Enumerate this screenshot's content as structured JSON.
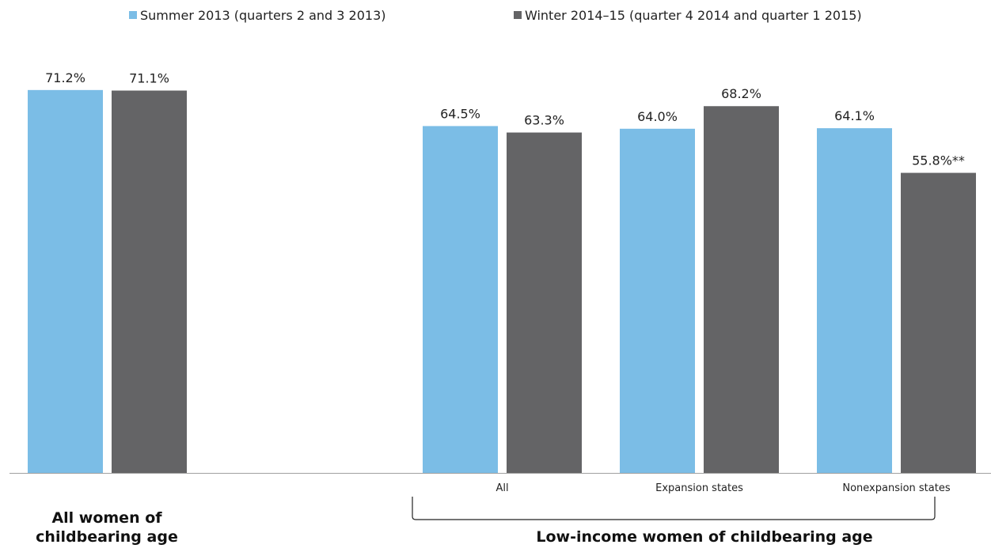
{
  "chart_data": {
    "type": "bar",
    "series": [
      {
        "name": "Summer 2013 (quarters 2 and 3 2013)",
        "color": "#7bbde6",
        "values": [
          71.2,
          64.5,
          64.0,
          64.1
        ],
        "labels": [
          "71.2%",
          "64.5%",
          "64.0%",
          "64.1%"
        ]
      },
      {
        "name": "Winter 2014–15 (quarter 4 2014 and quarter 1 2015)",
        "color": "#646466",
        "values": [
          71.1,
          63.3,
          68.2,
          55.8
        ],
        "labels": [
          "71.1%",
          "63.3%",
          "68.2%",
          "55.8%**"
        ]
      }
    ],
    "categories": [
      "",
      "All",
      "Expansion states",
      "Nonexpansion states"
    ],
    "groups": [
      "All women of childbearing age",
      "Low-income women of childbearing age"
    ],
    "legend_position": "top",
    "grid": false
  }
}
